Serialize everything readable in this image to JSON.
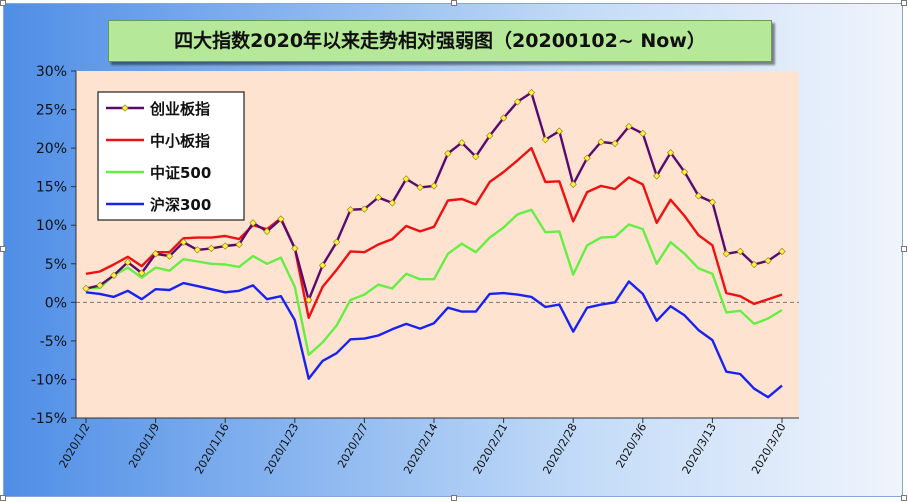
{
  "chart_data": {
    "type": "line",
    "title": "四大指数2020年以来走势相对强弱图（20200102~ Now）",
    "ylim": [
      -15,
      30
    ],
    "y_ticks": [
      "30%",
      "25%",
      "20%",
      "15%",
      "10%",
      "5%",
      "0%",
      "-5%",
      "-10%",
      "-15%"
    ],
    "x_tick_labels": [
      "2020/1/2",
      "2020/1/9",
      "2020/1/16",
      "2020/1/23",
      "2020/2/7",
      "2020/2/14",
      "2020/2/21",
      "2020/2/28",
      "2020/3/6",
      "2020/3/13",
      "2020/3/20"
    ],
    "x_tick_index": [
      0,
      5,
      10,
      15,
      20,
      25,
      30,
      35,
      40,
      45,
      50
    ],
    "legend_position": "top-left",
    "series": [
      {
        "name": "创业板指",
        "color": "#5a0a6e",
        "marker": true,
        "values": [
          1.8,
          2.2,
          3.5,
          5.2,
          3.8,
          6.3,
          6.0,
          7.8,
          6.8,
          7.0,
          7.3,
          7.5,
          10.3,
          9.2,
          10.8,
          7.0,
          0.3,
          4.8,
          7.8,
          12.0,
          12.1,
          13.6,
          12.9,
          16.0,
          14.9,
          15.1,
          19.3,
          20.7,
          18.9,
          21.6,
          23.9,
          26.0,
          27.2,
          21.1,
          22.2,
          15.3,
          18.7,
          20.8,
          20.6,
          22.8,
          21.9,
          16.4,
          19.4,
          16.9,
          13.8,
          13.0,
          6.3,
          6.6,
          4.9,
          5.4,
          6.6
        ]
      },
      {
        "name": "中小板指",
        "color": "#ee1111",
        "marker": false,
        "values": [
          3.7,
          4.0,
          4.9,
          5.9,
          4.7,
          6.5,
          6.5,
          8.3,
          8.4,
          8.4,
          8.6,
          8.2,
          10.0,
          9.5,
          10.9,
          7.0,
          -2.0,
          2.0,
          4.2,
          6.6,
          6.5,
          7.5,
          8.2,
          9.9,
          9.2,
          9.8,
          13.2,
          13.4,
          12.7,
          15.6,
          16.9,
          18.4,
          20.0,
          15.6,
          15.7,
          10.5,
          14.3,
          15.1,
          14.7,
          16.2,
          15.3,
          10.3,
          13.3,
          11.2,
          8.7,
          7.4,
          1.2,
          0.8,
          -0.2,
          0.4,
          1.0
        ]
      },
      {
        "name": "中证500",
        "color": "#66ee44",
        "marker": false,
        "values": [
          1.8,
          1.9,
          3.5,
          4.5,
          3.2,
          4.5,
          4.1,
          5.6,
          5.3,
          5.0,
          4.9,
          4.6,
          6.0,
          5.0,
          5.8,
          2.0,
          -6.8,
          -5.2,
          -3.0,
          0.3,
          1.0,
          2.3,
          1.8,
          3.7,
          3.0,
          3.0,
          6.3,
          7.6,
          6.5,
          8.4,
          9.7,
          11.4,
          12.0,
          9.1,
          9.2,
          3.6,
          7.4,
          8.4,
          8.5,
          10.1,
          9.5,
          5.0,
          7.8,
          6.3,
          4.4,
          3.7,
          -1.3,
          -1.1,
          -2.8,
          -2.1,
          -1.0
        ]
      },
      {
        "name": "沪深300",
        "color": "#1a22ee",
        "marker": false,
        "values": [
          1.3,
          1.1,
          0.7,
          1.5,
          0.4,
          1.7,
          1.6,
          2.5,
          2.1,
          1.7,
          1.3,
          1.5,
          2.2,
          0.4,
          0.8,
          -2.3,
          -9.9,
          -7.6,
          -6.6,
          -4.8,
          -4.7,
          -4.3,
          -3.5,
          -2.8,
          -3.4,
          -2.7,
          -0.7,
          -1.2,
          -1.2,
          1.1,
          1.2,
          1.0,
          0.7,
          -0.6,
          -0.3,
          -3.8,
          -0.7,
          -0.3,
          0.0,
          2.7,
          1.1,
          -2.4,
          -0.5,
          -1.7,
          -3.6,
          -4.9,
          -9.0,
          -9.3,
          -11.2,
          -12.3,
          -10.8
        ]
      }
    ]
  }
}
